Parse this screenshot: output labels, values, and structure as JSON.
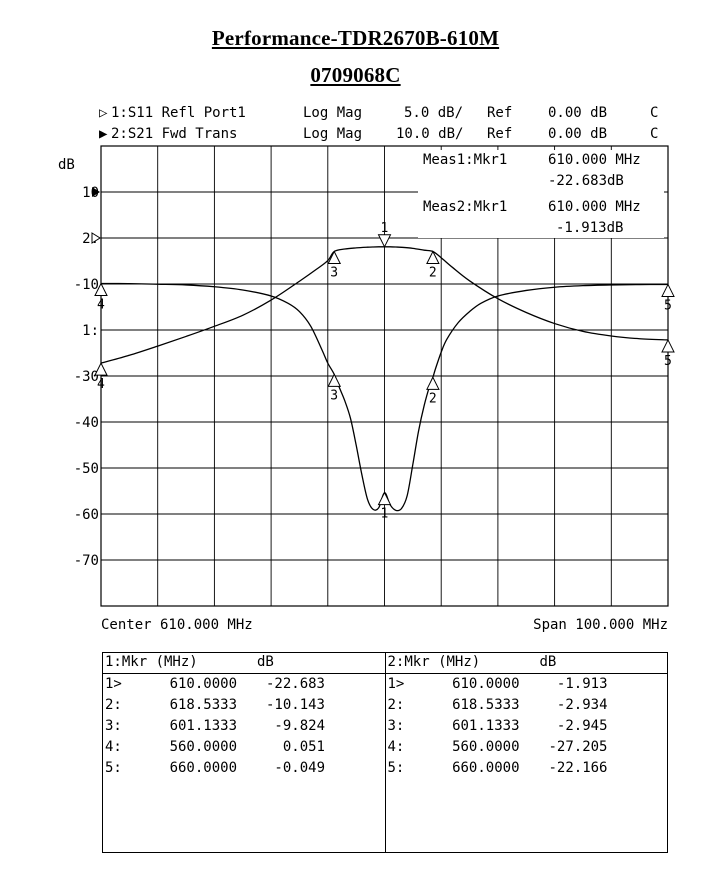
{
  "title": "Performance-TDR2670B-610M",
  "serial": "0709068C",
  "traces": [
    {
      "id": "1",
      "indicator": "▷",
      "label": "1:S11 Refl Port1",
      "format": "Log Mag",
      "scale": "5.0 dB/",
      "ref_label": "Ref",
      "ref": "0.00 dB",
      "flag": "C"
    },
    {
      "id": "2",
      "indicator": "▶",
      "label": "2:S21 Fwd Trans",
      "format": "Log Mag",
      "scale": "10.0 dB/",
      "ref_label": "Ref",
      "ref": "0.00 dB",
      "flag": "C"
    }
  ],
  "meas": [
    {
      "label": "Meas1:Mkr1",
      "freq": "610.000 MHz",
      "value": "-22.683dB"
    },
    {
      "label": "Meas2:Mkr1",
      "freq": "610.000 MHz",
      "value": "-1.913dB"
    }
  ],
  "footer": {
    "center": "Center 610.000 MHz",
    "span": "Span 100.000 MHz"
  },
  "chart_data": {
    "type": "line",
    "x_unit": "MHz",
    "xlim": [
      560,
      660
    ],
    "ylabel": "dB",
    "y_ticks": [
      "10",
      "2:",
      "-10",
      "1:",
      "-30",
      "-40",
      "-50",
      "-60",
      "-70"
    ],
    "grid": true,
    "y_grid_db": [
      20,
      10,
      0,
      -10,
      -20,
      -30,
      -40,
      -50,
      -60,
      -70,
      -80
    ],
    "series": [
      {
        "id": "S21",
        "ref_db": 0,
        "ref_position_db": 0,
        "scale_db_per_div": 10,
        "x": [
          560,
          565,
          570,
          575,
          580,
          585,
          590,
          595,
          598,
          600,
          601.1333,
          603,
          605,
          607,
          608,
          609,
          610,
          611,
          612,
          613,
          615,
          617,
          618.5333,
          620,
          622,
          625,
          630,
          635,
          640,
          645,
          650,
          655,
          660
        ],
        "y": [
          -27.205,
          -25.5,
          -23.5,
          -21.4,
          -19.2,
          -16.8,
          -13.5,
          -9.4,
          -6.8,
          -4.9,
          -2.945,
          -2.4,
          -2.15,
          -2.0,
          -1.95,
          -1.92,
          -1.913,
          -1.92,
          -1.96,
          -2.02,
          -2.25,
          -2.65,
          -2.934,
          -4.3,
          -6.4,
          -9.3,
          -13.2,
          -16.2,
          -18.6,
          -20.3,
          -21.3,
          -21.9,
          -22.166
        ]
      },
      {
        "id": "S11",
        "ref_db": 0,
        "ref_position_db": -10,
        "scale_db_per_div": 5,
        "x": [
          560,
          565,
          570,
          575,
          580,
          585,
          590,
          593,
          595,
          597,
          599,
          600,
          601.1333,
          602,
          603,
          604,
          605,
          606,
          607,
          608,
          609,
          610,
          611,
          612,
          613,
          614,
          615,
          616,
          617,
          618,
          618.5333,
          619,
          620,
          621,
          623,
          625,
          627,
          630,
          635,
          640,
          645,
          650,
          655,
          660
        ],
        "y": [
          0.051,
          0.04,
          -0.02,
          -0.1,
          -0.3,
          -0.65,
          -1.3,
          -2.1,
          -3.0,
          -4.6,
          -7.2,
          -8.6,
          -9.824,
          -11.2,
          -12.7,
          -14.6,
          -17.5,
          -20.7,
          -23.4,
          -24.5,
          -24.3,
          -22.683,
          -24.0,
          -24.6,
          -24.4,
          -23.0,
          -19.6,
          -16.0,
          -13.2,
          -11.0,
          -10.143,
          -9.2,
          -7.4,
          -6.0,
          -4.2,
          -3.0,
          -2.1,
          -1.3,
          -0.7,
          -0.35,
          -0.18,
          -0.1,
          -0.06,
          -0.049
        ]
      }
    ],
    "markers": [
      {
        "series": "S21",
        "id": "1",
        "x": 610,
        "y": -1.913,
        "dir": "down"
      },
      {
        "series": "S21",
        "id": "2",
        "x": 618.5333,
        "y": -2.934,
        "dir": "up"
      },
      {
        "series": "S21",
        "id": "3",
        "x": 601.1333,
        "y": -2.945,
        "dir": "up"
      },
      {
        "series": "S21",
        "id": "4",
        "x": 560,
        "y": -27.205,
        "dir": "up"
      },
      {
        "series": "S21",
        "id": "5",
        "x": 660,
        "y": -22.166,
        "dir": "up"
      },
      {
        "series": "S11",
        "id": "1",
        "x": 610,
        "y": -22.683,
        "dir": "up"
      },
      {
        "series": "S11",
        "id": "2",
        "x": 618.5333,
        "y": -10.143,
        "dir": "up"
      },
      {
        "series": "S11",
        "id": "3",
        "x": 601.1333,
        "y": -9.824,
        "dir": "up"
      },
      {
        "series": "S11",
        "id": "4",
        "x": 560,
        "y": 0.051,
        "dir": "up"
      },
      {
        "series": "S11",
        "id": "5",
        "x": 660,
        "y": -0.049,
        "dir": "up"
      }
    ]
  },
  "marker_tables": [
    {
      "header": {
        "mkr": "1:Mkr (MHz)",
        "db": "dB"
      },
      "rows": [
        {
          "idx": "1>",
          "freq": "610.0000",
          "db": "-22.683"
        },
        {
          "idx": "2:",
          "freq": "618.5333",
          "db": "-10.143"
        },
        {
          "idx": "3:",
          "freq": "601.1333",
          "db": "-9.824"
        },
        {
          "idx": "4:",
          "freq": "560.0000",
          "db": "0.051"
        },
        {
          "idx": "5:",
          "freq": "660.0000",
          "db": "-0.049"
        }
      ]
    },
    {
      "header": {
        "mkr": "2:Mkr (MHz)",
        "db": "dB"
      },
      "rows": [
        {
          "idx": "1>",
          "freq": "610.0000",
          "db": "-1.913"
        },
        {
          "idx": "2:",
          "freq": "618.5333",
          "db": "-2.934"
        },
        {
          "idx": "3:",
          "freq": "601.1333",
          "db": "-2.945"
        },
        {
          "idx": "4:",
          "freq": "560.0000",
          "db": "-27.205"
        },
        {
          "idx": "5:",
          "freq": "660.0000",
          "db": "-22.166"
        }
      ]
    }
  ]
}
